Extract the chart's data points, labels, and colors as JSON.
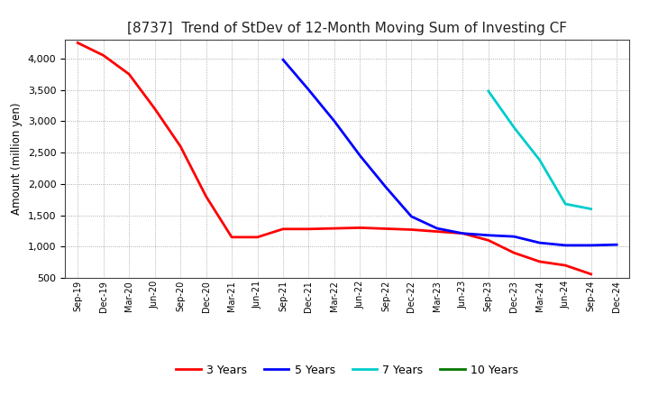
{
  "title": "[8737]  Trend of StDev of 12-Month Moving Sum of Investing CF",
  "ylabel": "Amount (million yen)",
  "background_color": "#ffffff",
  "grid_color": "#999999",
  "ylim": [
    500,
    4300
  ],
  "yticks": [
    500,
    1000,
    1500,
    2000,
    2500,
    3000,
    3500,
    4000
  ],
  "series": {
    "3 Years": {
      "color": "#ff0000",
      "x": [
        "Sep-19",
        "Dec-19",
        "Mar-20",
        "Jun-20",
        "Sep-20",
        "Dec-20",
        "Mar-21",
        "Jun-21",
        "Sep-21",
        "Dec-21",
        "Mar-22",
        "Jun-22",
        "Sep-22",
        "Dec-22",
        "Mar-23",
        "Jun-23",
        "Sep-23",
        "Dec-23",
        "Mar-24",
        "Jun-24",
        "Sep-24"
      ],
      "y": [
        4250,
        4050,
        3750,
        3200,
        2600,
        1800,
        1150,
        1150,
        1280,
        1280,
        1290,
        1300,
        1285,
        1270,
        1240,
        1210,
        1100,
        900,
        760,
        700,
        560
      ]
    },
    "5 Years": {
      "color": "#0000ff",
      "x": [
        "Sep-21",
        "Dec-21",
        "Mar-22",
        "Jun-22",
        "Sep-22",
        "Dec-22",
        "Mar-23",
        "Jun-23",
        "Sep-23",
        "Dec-23",
        "Mar-24",
        "Jun-24",
        "Sep-24",
        "Dec-24"
      ],
      "y": [
        3980,
        3500,
        3000,
        2450,
        1950,
        1480,
        1290,
        1210,
        1180,
        1160,
        1060,
        1020,
        1020,
        1030
      ]
    },
    "7 Years": {
      "color": "#00cccc",
      "x": [
        "Sep-23",
        "Dec-23",
        "Mar-24",
        "Jun-24",
        "Sep-24"
      ],
      "y": [
        3480,
        2900,
        2380,
        1680,
        1600
      ]
    },
    "10 Years": {
      "color": "#007700",
      "x": [],
      "y": []
    }
  },
  "x_labels": [
    "Sep-19",
    "Dec-19",
    "Mar-20",
    "Jun-20",
    "Sep-20",
    "Dec-20",
    "Mar-21",
    "Jun-21",
    "Sep-21",
    "Dec-21",
    "Mar-22",
    "Jun-22",
    "Sep-22",
    "Dec-22",
    "Mar-23",
    "Jun-23",
    "Sep-23",
    "Dec-23",
    "Mar-24",
    "Jun-24",
    "Sep-24",
    "Dec-24"
  ],
  "legend_names": [
    "3 Years",
    "5 Years",
    "7 Years",
    "10 Years"
  ],
  "legend_colors": [
    "#ff0000",
    "#0000ff",
    "#00cccc",
    "#007700"
  ]
}
